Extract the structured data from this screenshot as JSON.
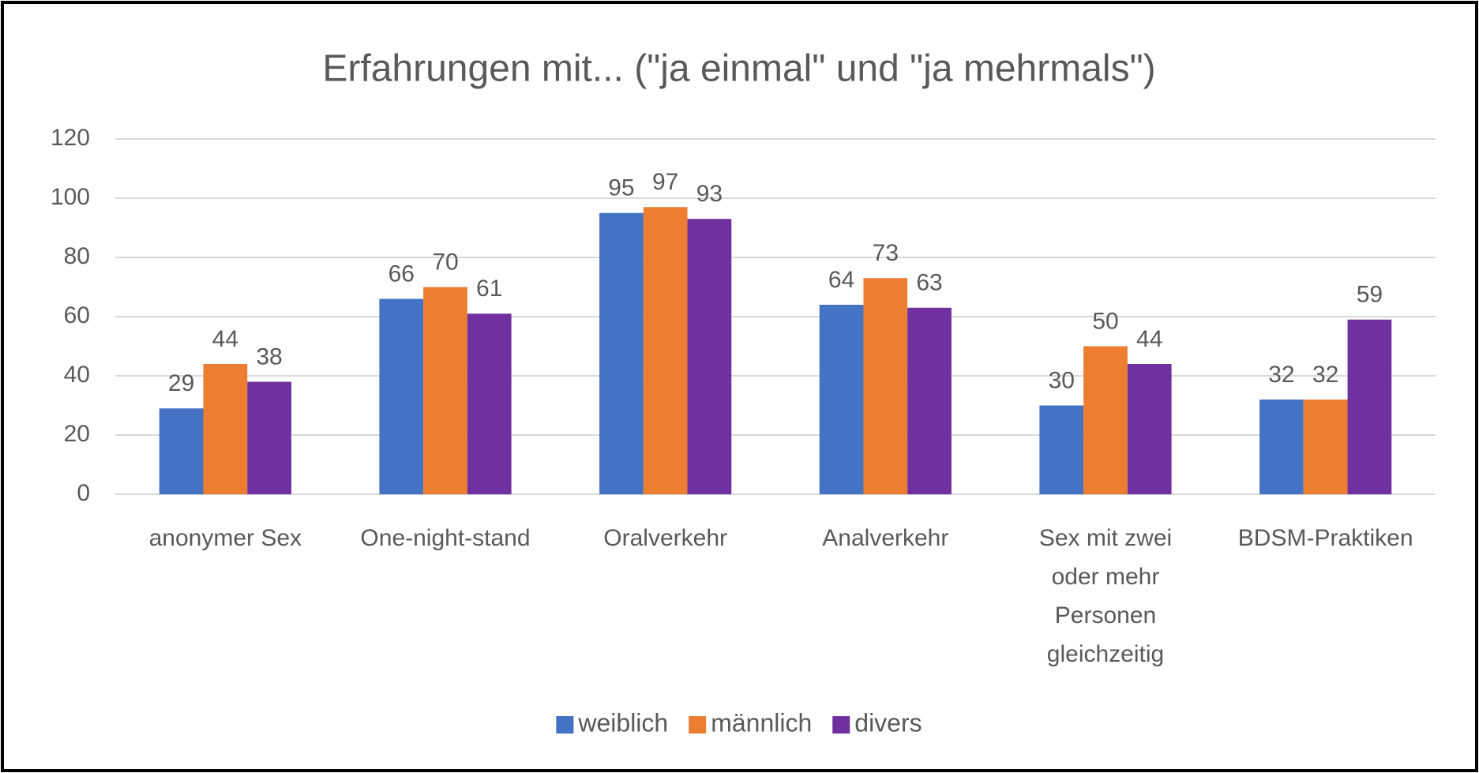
{
  "chart_data": {
    "type": "bar",
    "title": "Erfahrungen mit... (\"ja einmal\" und \"ja mehrmals\")",
    "categories": [
      "anonymer Sex",
      "One-night-stand",
      "Oralverkehr",
      "Analverkehr",
      "Sex mit zwei oder mehr Personen gleichzeitig",
      "BDSM-Praktiken"
    ],
    "series": [
      {
        "name": "weiblich",
        "color": "#4472c4",
        "values": [
          29,
          66,
          95,
          64,
          30,
          32
        ]
      },
      {
        "name": "männlich",
        "color": "#ed7d31",
        "values": [
          44,
          70,
          97,
          73,
          50,
          32
        ]
      },
      {
        "name": "divers",
        "color": "#7030a0",
        "values": [
          38,
          61,
          93,
          63,
          44,
          59
        ]
      }
    ],
    "ylim": [
      0,
      120
    ],
    "yticks": [
      0,
      20,
      40,
      60,
      80,
      100,
      120
    ],
    "grid": true,
    "legend": "bottom"
  }
}
